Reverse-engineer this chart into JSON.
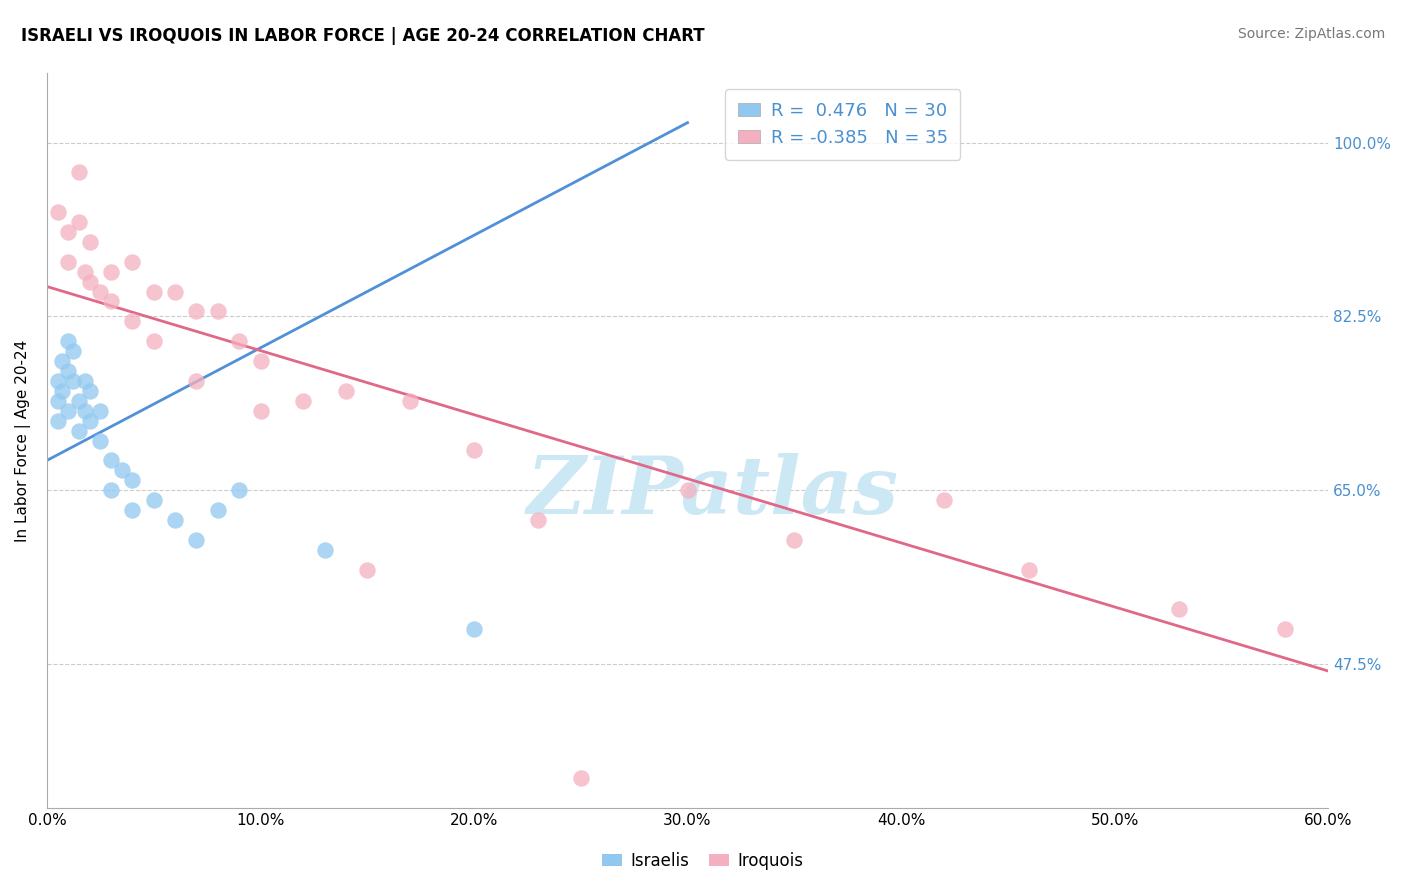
{
  "title": "ISRAELI VS IROQUOIS IN LABOR FORCE | AGE 20-24 CORRELATION CHART",
  "source": "Source: ZipAtlas.com",
  "ylabel": "In Labor Force | Age 20-24",
  "xmin": 0.0,
  "xmax": 0.6,
  "ymin": 0.33,
  "ymax": 1.07,
  "yticks": [
    0.475,
    0.65,
    0.825,
    1.0
  ],
  "ytick_labels": [
    "47.5%",
    "65.0%",
    "82.5%",
    "100.0%"
  ],
  "xticks": [
    0.0,
    0.1,
    0.2,
    0.3,
    0.4,
    0.5,
    0.6
  ],
  "xtick_labels": [
    "0.0%",
    "10.0%",
    "20.0%",
    "30.0%",
    "40.0%",
    "50.0%",
    "60.0%"
  ],
  "israelis_x": [
    0.005,
    0.005,
    0.005,
    0.007,
    0.007,
    0.01,
    0.01,
    0.01,
    0.012,
    0.012,
    0.015,
    0.015,
    0.018,
    0.018,
    0.02,
    0.02,
    0.025,
    0.025,
    0.03,
    0.03,
    0.035,
    0.04,
    0.04,
    0.05,
    0.06,
    0.07,
    0.08,
    0.09,
    0.13,
    0.2
  ],
  "israelis_y": [
    0.76,
    0.74,
    0.72,
    0.78,
    0.75,
    0.8,
    0.77,
    0.73,
    0.79,
    0.76,
    0.74,
    0.71,
    0.76,
    0.73,
    0.75,
    0.72,
    0.73,
    0.7,
    0.68,
    0.65,
    0.67,
    0.66,
    0.63,
    0.64,
    0.62,
    0.6,
    0.63,
    0.65,
    0.59,
    0.51
  ],
  "iroquois_x": [
    0.005,
    0.01,
    0.01,
    0.015,
    0.015,
    0.018,
    0.02,
    0.02,
    0.025,
    0.03,
    0.03,
    0.04,
    0.04,
    0.05,
    0.05,
    0.06,
    0.07,
    0.07,
    0.08,
    0.09,
    0.1,
    0.1,
    0.12,
    0.14,
    0.15,
    0.17,
    0.2,
    0.23,
    0.25,
    0.3,
    0.35,
    0.42,
    0.46,
    0.53,
    0.58
  ],
  "iroquois_y": [
    0.93,
    0.91,
    0.88,
    0.97,
    0.92,
    0.87,
    0.86,
    0.9,
    0.85,
    0.87,
    0.84,
    0.88,
    0.82,
    0.85,
    0.8,
    0.85,
    0.83,
    0.76,
    0.83,
    0.8,
    0.78,
    0.73,
    0.74,
    0.75,
    0.57,
    0.74,
    0.69,
    0.62,
    0.36,
    0.65,
    0.6,
    0.64,
    0.57,
    0.53,
    0.51
  ],
  "israeli_color": "#90c8f0",
  "iroquois_color": "#f4b0c0",
  "israeli_line_color": "#5090d8",
  "iroquois_line_color": "#e06888",
  "watermark_text": "ZIPatlas",
  "watermark_color": "#cde8f5",
  "R_israeli": 0.476,
  "N_israeli": 30,
  "R_iroquois": -0.385,
  "N_iroquois": 35,
  "israeli_trend_x0": 0.0,
  "israeli_trend_y0": 0.68,
  "israeli_trend_x1": 0.3,
  "israeli_trend_y1": 1.02,
  "iroquois_trend_x0": 0.0,
  "iroquois_trend_y0": 0.855,
  "iroquois_trend_x1": 0.6,
  "iroquois_trend_y1": 0.468
}
